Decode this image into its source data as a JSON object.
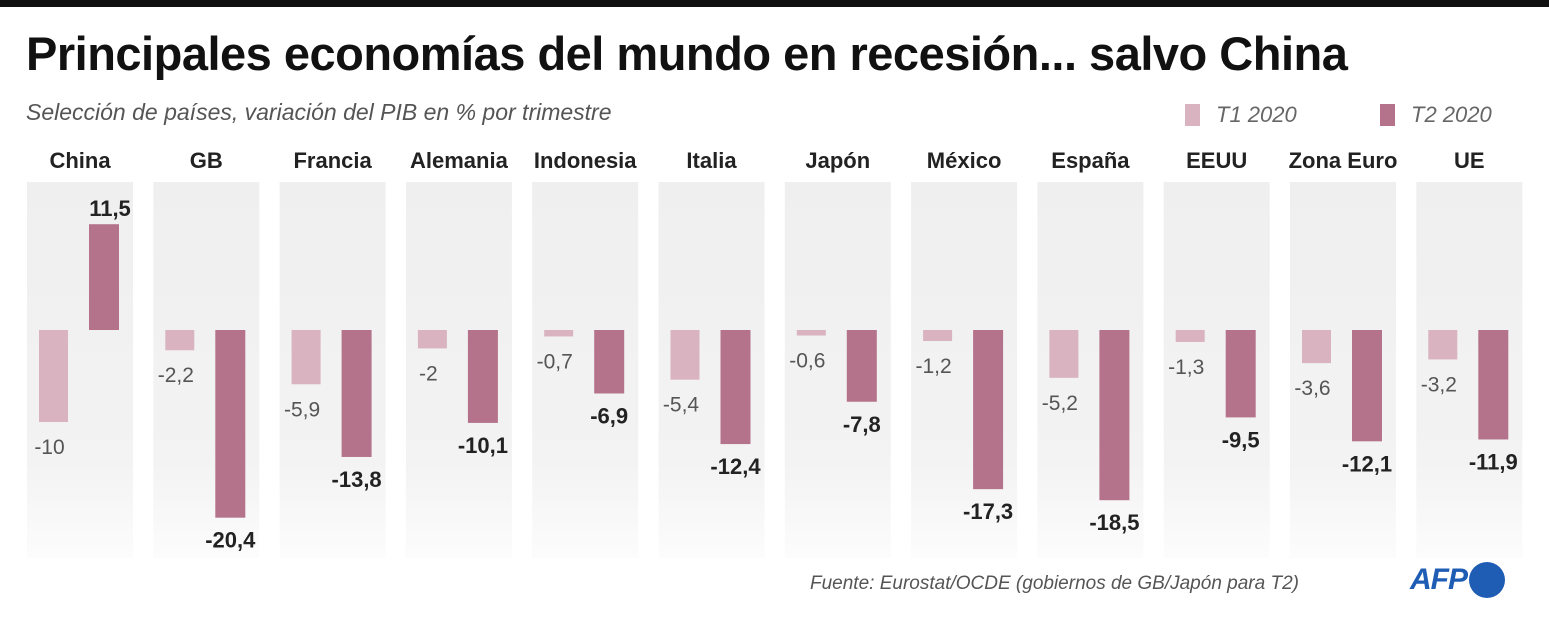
{
  "chart_data": {
    "type": "bar",
    "title": "Principales economías del mundo en recesión... salvo China",
    "subtitle": "Selección de países, variación del PIB en % por trimestre",
    "categories": [
      "China",
      "GB",
      "Francia",
      "Alemania",
      "Indonesia",
      "Italia",
      "Japón",
      "México",
      "España",
      "EEUU",
      "Zona Euro",
      "UE"
    ],
    "series": [
      {
        "name": "T1 2020",
        "color": "#d9b3bf",
        "values": [
          -10,
          -2.2,
          -5.9,
          -2,
          -0.7,
          -5.4,
          -0.6,
          -1.2,
          -5.2,
          -1.3,
          -3.6,
          -3.2
        ],
        "labels": [
          "-10",
          "-2,2",
          "-5,9",
          "-2",
          "-0,7",
          "-5,4",
          "-0,6",
          "-1,2",
          "-5,2",
          "-1,3",
          "-3,6",
          "-3,2"
        ]
      },
      {
        "name": "T2 2020",
        "color": "#b5738b",
        "values": [
          11.5,
          -20.4,
          -13.8,
          -10.1,
          -6.9,
          -12.4,
          -7.8,
          -17.3,
          -18.5,
          -9.5,
          -12.1,
          -11.9
        ],
        "labels": [
          "11,5",
          "-20,4",
          "-13,8",
          "-10,1",
          "-6,9",
          "-12,4",
          "-7,8",
          "-17,3",
          "-18,5",
          "-9,5",
          "-12,1",
          "-11,9"
        ]
      }
    ],
    "legend_position": "top-right",
    "grid": false,
    "ylim": [
      -22,
      16
    ]
  },
  "source": "Fuente: Eurostat/OCDE (gobiernos de GB/Japón para T2)",
  "logo": "AFP"
}
